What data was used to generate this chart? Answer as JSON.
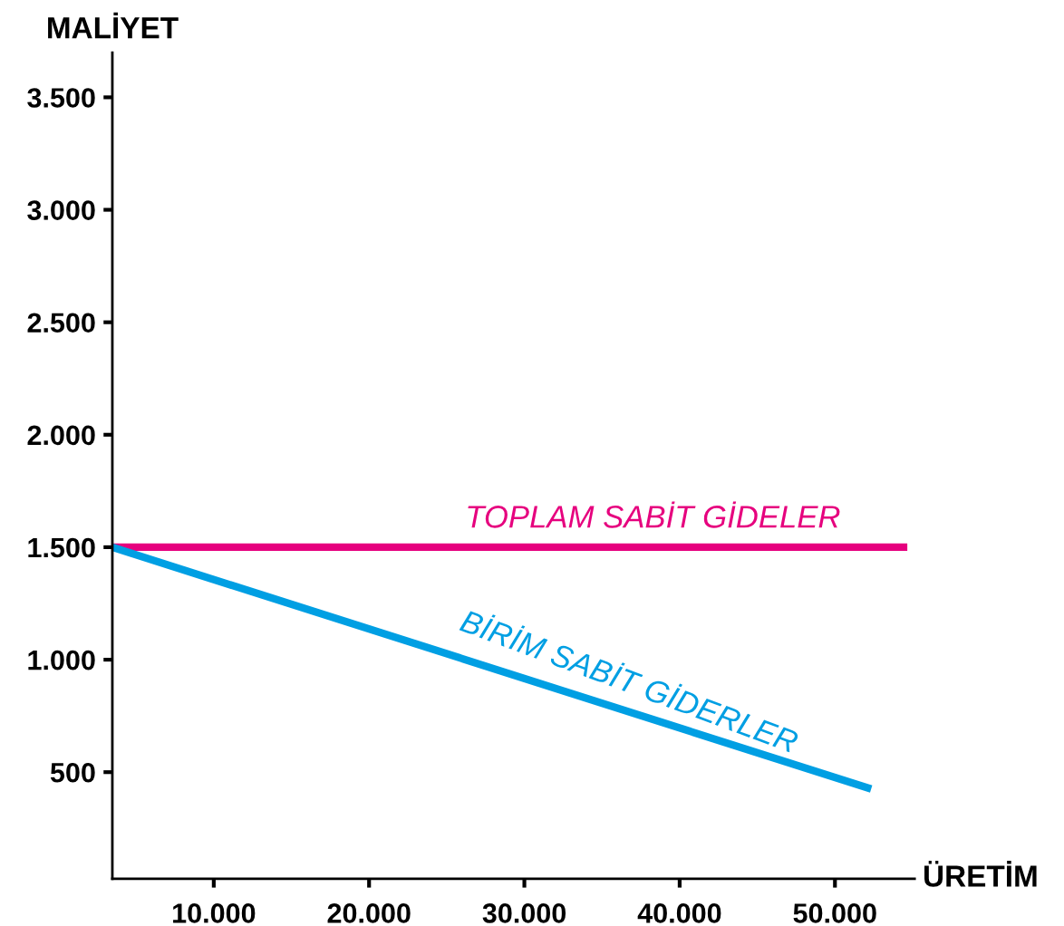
{
  "chart_data": {
    "type": "line",
    "xlabel": "ÜRETİM",
    "ylabel": "MALİYET",
    "xlim": [
      3470,
      55130
    ],
    "ylim": [
      26,
      3698
    ],
    "xticks": [
      {
        "value": 10000,
        "label": "10.000"
      },
      {
        "value": 20000,
        "label": "20.000"
      },
      {
        "value": 30000,
        "label": "30.000"
      },
      {
        "value": 40000,
        "label": "40.000"
      },
      {
        "value": 50000,
        "label": "50.000"
      }
    ],
    "yticks": [
      {
        "value": 500,
        "label": "500"
      },
      {
        "value": 1000,
        "label": "1.000"
      },
      {
        "value": 1500,
        "label": "1.500"
      },
      {
        "value": 2000,
        "label": "2.000"
      },
      {
        "value": 2500,
        "label": "2.500"
      },
      {
        "value": 3000,
        "label": "3.000"
      },
      {
        "value": 3500,
        "label": "3.500"
      }
    ],
    "grid": false,
    "legend": false,
    "marker": "none",
    "line_style": "solid",
    "series": [
      {
        "color": "#e6007e",
        "x": [
          3470,
          54660
        ],
        "values": [
          1500,
          1500
        ]
      },
      {
        "color": "#009fe3",
        "x": [
          3470,
          52330
        ],
        "values": [
          1500,
          425
        ]
      }
    ],
    "annotations": [
      "TOPLAM SABİT GİDELER",
      "BİRİM SABİT GİDERLER"
    ]
  }
}
